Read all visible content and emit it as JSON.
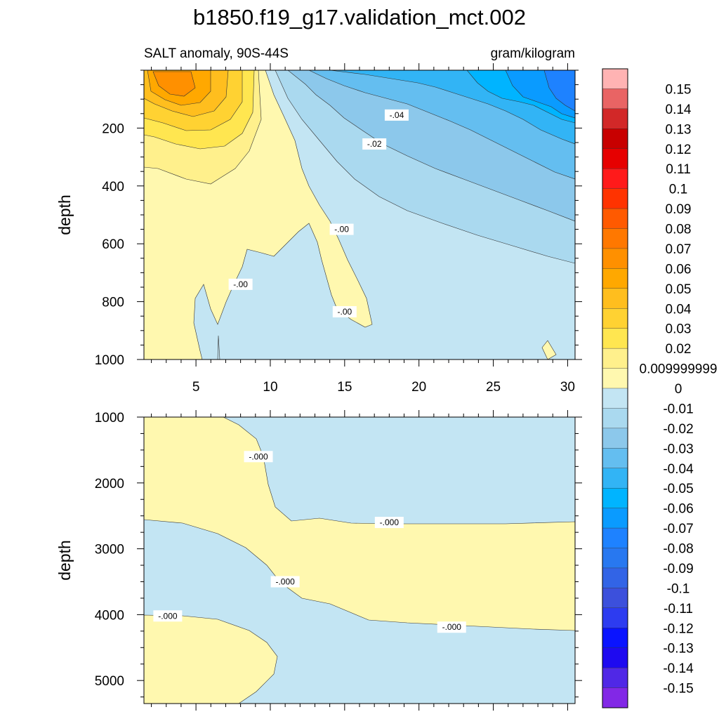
{
  "title": "b1850.f19_g17.validation_mct.002",
  "subtitle_left": "SALT anomaly, 90S-44S",
  "subtitle_right": "gram/kilogram",
  "chart_data": [
    {
      "type": "contour",
      "panel": "upper",
      "ylabel": "depth",
      "xlim": [
        1.5,
        30.5
      ],
      "ylim": [
        1000,
        0
      ],
      "xticks": [
        5,
        10,
        15,
        20,
        25,
        30
      ],
      "yticks": [
        200,
        400,
        600,
        800,
        1000
      ],
      "contour_labels": [
        {
          "text": "-.04",
          "x": 18.5,
          "y": 155
        },
        {
          "text": "-.02",
          "x": 17.0,
          "y": 255
        },
        {
          "text": "-.00",
          "x": 14.8,
          "y": 550
        },
        {
          "text": "-.00",
          "x": 8.0,
          "y": 740
        },
        {
          "text": "-.00",
          "x": 15.0,
          "y": 835
        }
      ]
    },
    {
      "type": "contour",
      "panel": "lower",
      "ylabel": "depth",
      "xlim": [
        1.5,
        30.5
      ],
      "ylim": [
        5350,
        1000
      ],
      "xticks": [
        5,
        10,
        15,
        20,
        25,
        30
      ],
      "yticks": [
        1000,
        2000,
        3000,
        4000,
        5000
      ],
      "contour_labels": [
        {
          "text": "-.000",
          "x": 9.2,
          "y": 1600
        },
        {
          "text": "-.000",
          "x": 18.0,
          "y": 2600
        },
        {
          "text": "-.000",
          "x": 11.0,
          "y": 3500
        },
        {
          "text": "-.000",
          "x": 3.1,
          "y": 4020
        },
        {
          "text": "-.000",
          "x": 22.2,
          "y": 4190
        }
      ]
    }
  ],
  "colorbar": {
    "labels": [
      "0.15",
      "0.14",
      "0.13",
      "0.12",
      "0.11",
      "0.1",
      "0.09",
      "0.08",
      "0.07",
      "0.06",
      "0.05",
      "0.04",
      "0.03",
      "0.02",
      "0.009999999",
      "0",
      "-0.01",
      "-0.02",
      "-0.03",
      "-0.04",
      "-0.05",
      "-0.06",
      "-0.07",
      "-0.08",
      "-0.09",
      "-0.1",
      "-0.11",
      "-0.12",
      "-0.13",
      "-0.14",
      "-0.15"
    ],
    "colors": [
      "#FFB3B3",
      "#E96464",
      "#D22828",
      "#C80000",
      "#E60000",
      "#FF1A1A",
      "#FF3300",
      "#FF5A00",
      "#FF7800",
      "#FF9000",
      "#FFA800",
      "#FFBE1E",
      "#FFD232",
      "#FFE650",
      "#FFF08C",
      "#FFF8AF",
      "#C3E5F3",
      "#AAD9EF",
      "#8CC8EB",
      "#64BEF0",
      "#32B4F5",
      "#00B4FF",
      "#0A9BFF",
      "#1E82FF",
      "#2878F0",
      "#3264E6",
      "#3C50DC",
      "#2D3CF0",
      "#0A14FF",
      "#1E0AF0",
      "#5028E6",
      "#8228E6"
    ]
  }
}
